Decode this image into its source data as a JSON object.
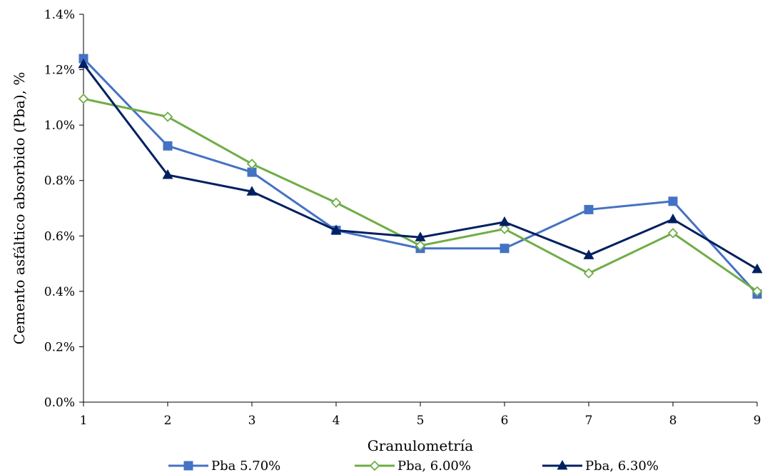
{
  "chart_data": {
    "type": "line",
    "title": "",
    "xlabel": "Granulometría",
    "ylabel": "Cemento asfáltico absorbido (Pba), %",
    "x": [
      1,
      2,
      3,
      4,
      5,
      6,
      7,
      8,
      9
    ],
    "x_tick_labels": [
      "1",
      "2",
      "3",
      "4",
      "5",
      "6",
      "7",
      "8",
      "9"
    ],
    "ylim": [
      0,
      1.4
    ],
    "y_unit": "%",
    "y_tick_values": [
      0,
      0.2,
      0.4,
      0.6,
      0.8,
      1.0,
      1.2,
      1.4
    ],
    "y_tick_labels": [
      "0.0%",
      "0.2%",
      "0.4%",
      "0.6%",
      "0.8%",
      "1.0%",
      "1.2%",
      "1.4%"
    ],
    "grid": false,
    "legend_position": "bottom",
    "series": [
      {
        "name": "Pba 5.70%",
        "color": "#4472C4",
        "marker": "square-filled",
        "values": [
          1.24,
          0.925,
          0.83,
          0.62,
          0.555,
          0.555,
          0.695,
          0.725,
          0.39
        ]
      },
      {
        "name": "Pba, 6.00%",
        "color": "#70AD47",
        "marker": "diamond-open",
        "values": [
          1.095,
          1.03,
          0.86,
          0.72,
          0.565,
          0.625,
          0.465,
          0.61,
          0.4
        ]
      },
      {
        "name": "Pba, 6.30%",
        "color": "#002060",
        "marker": "triangle-filled",
        "values": [
          1.22,
          0.82,
          0.76,
          0.62,
          0.595,
          0.65,
          0.53,
          0.66,
          0.48
        ]
      }
    ]
  }
}
